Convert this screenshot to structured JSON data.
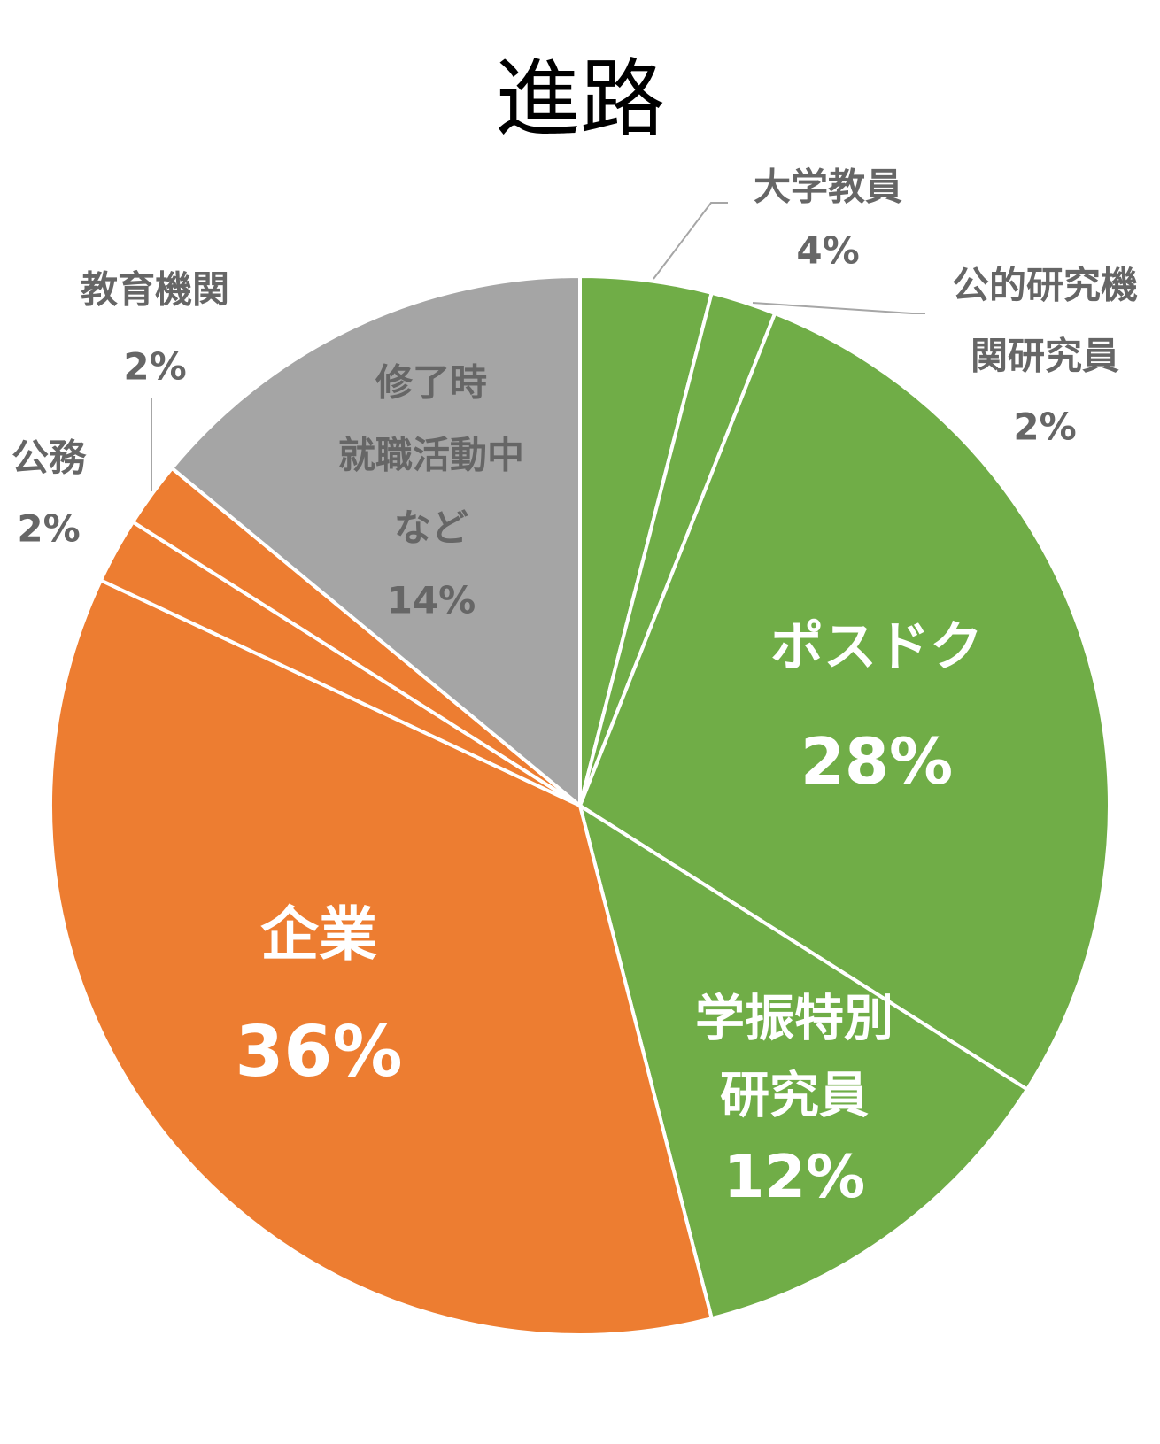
{
  "chart_data": {
    "type": "pie",
    "title": "進路",
    "start_angle_deg": 0,
    "direction": "clockwise",
    "slices": [
      {
        "label": "大学教員",
        "value": 4,
        "display": "4%",
        "color": "#70ad47",
        "label_position": "outside"
      },
      {
        "label": "公的研究機関研究員",
        "label_lines": [
          "公的研究機",
          "関研究員"
        ],
        "value": 2,
        "display": "2%",
        "color": "#70ad47",
        "label_position": "outside"
      },
      {
        "label": "ポスドク",
        "value": 28,
        "display": "28%",
        "color": "#70ad47",
        "label_position": "inside"
      },
      {
        "label": "学振特別研究員",
        "label_lines": [
          "学振特別",
          "研究員"
        ],
        "value": 12,
        "display": "12%",
        "color": "#70ad47",
        "label_position": "inside"
      },
      {
        "label": "企業",
        "value": 36,
        "display": "36%",
        "color": "#ed7d31",
        "label_position": "inside"
      },
      {
        "label": "公務",
        "value": 2,
        "display": "2%",
        "color": "#ed7d31",
        "label_position": "outside"
      },
      {
        "label": "教育機関",
        "value": 2,
        "display": "2%",
        "color": "#ed7d31",
        "label_position": "outside"
      },
      {
        "label": "修了時就職活動中など",
        "label_lines": [
          "修了時",
          "就職活動中",
          "など"
        ],
        "value": 14,
        "display": "14%",
        "color": "#a5a5a5",
        "label_position": "inside"
      }
    ]
  }
}
